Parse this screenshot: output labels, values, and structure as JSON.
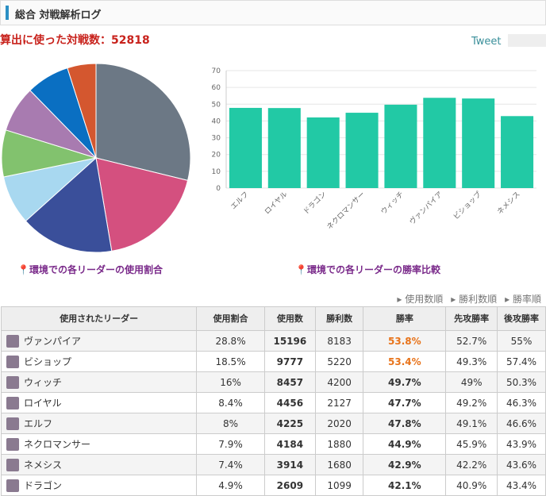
{
  "header": {
    "title": "総合 対戦解析ログ",
    "battle_count": "算出に使った対戦数：52818",
    "tweet": "Tweet"
  },
  "chart_data": [
    {
      "type": "pie",
      "values": [
        28.8,
        18.5,
        16,
        8.4,
        8,
        7.9,
        7.4,
        4.9
      ],
      "colors": [
        "#6c7885",
        "#d4507f",
        "#3a4f9a",
        "#a8d8f0",
        "#82c26e",
        "#a87bb0",
        "#0a6fc2",
        "#d4572f"
      ],
      "caption": "環境での各リーダーの使用割合"
    },
    {
      "type": "bar",
      "categories": [
        "エルフ",
        "ロイヤル",
        "ドラゴン",
        "ネクロマンサー",
        "ウィッチ",
        "ヴァンパイア",
        "ビショップ",
        "ネメシス"
      ],
      "values": [
        47.8,
        47.7,
        42.1,
        44.9,
        49.7,
        53.8,
        53.4,
        42.9
      ],
      "color": "#22c9a5",
      "ylim": [
        0,
        70
      ],
      "yticks": [
        0,
        10,
        20,
        30,
        40,
        50,
        60,
        70
      ],
      "grid": true,
      "caption": "環境での各リーダーの勝率比較"
    }
  ],
  "sort_links": [
    "使用数順",
    "勝利数順",
    "勝率順"
  ],
  "table": {
    "columns": [
      "使用されたリーダー",
      "使用割合",
      "使用数",
      "勝利数",
      "勝率",
      "先攻勝率",
      "後攻勝率"
    ],
    "rows": [
      [
        "ヴァンパイア",
        "28.8%",
        "15196",
        "8183",
        "53.8%",
        "52.7%",
        "55%"
      ],
      [
        "ビショップ",
        "18.5%",
        "9777",
        "5220",
        "53.4%",
        "49.3%",
        "57.4%"
      ],
      [
        "ウィッチ",
        "16%",
        "8457",
        "4200",
        "49.7%",
        "49%",
        "50.3%"
      ],
      [
        "ロイヤル",
        "8.4%",
        "4456",
        "2127",
        "47.7%",
        "49.2%",
        "46.3%"
      ],
      [
        "エルフ",
        "8%",
        "4225",
        "2020",
        "47.8%",
        "49.1%",
        "46.6%"
      ],
      [
        "ネクロマンサー",
        "7.9%",
        "4184",
        "1880",
        "44.9%",
        "45.9%",
        "43.9%"
      ],
      [
        "ネメシス",
        "7.4%",
        "3914",
        "1680",
        "42.9%",
        "42.2%",
        "43.6%"
      ],
      [
        "ドラゴン",
        "4.9%",
        "2609",
        "1099",
        "42.1%",
        "40.9%",
        "43.4%"
      ]
    ],
    "highlight_color": "#e8731a",
    "highlighted_rows": [
      0,
      1
    ]
  }
}
